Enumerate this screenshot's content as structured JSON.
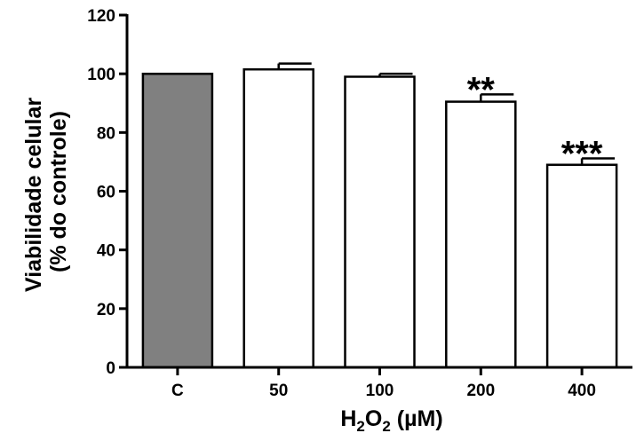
{
  "chart_data": {
    "type": "bar",
    "categories": [
      "C",
      "50",
      "100",
      "200",
      "400"
    ],
    "values": [
      100,
      101.5,
      99,
      90.5,
      69
    ],
    "errors": [
      0,
      2,
      1,
      2.5,
      2.2
    ],
    "significance": [
      "",
      "",
      "",
      "**",
      "***"
    ],
    "bar_colors": [
      "#808080",
      "#ffffff",
      "#ffffff",
      "#ffffff",
      "#ffffff"
    ],
    "ylim": [
      0,
      120
    ],
    "yticks": [
      0,
      20,
      40,
      60,
      80,
      100,
      120
    ],
    "ylabel_lines": [
      "Viabilidade celular",
      "(% do controle)"
    ],
    "xlabel": {
      "base": "H",
      "sub1": "2",
      "mid": "O",
      "sub2": "2",
      "rest": " (µM)"
    },
    "grid": false,
    "legend": "none"
  }
}
